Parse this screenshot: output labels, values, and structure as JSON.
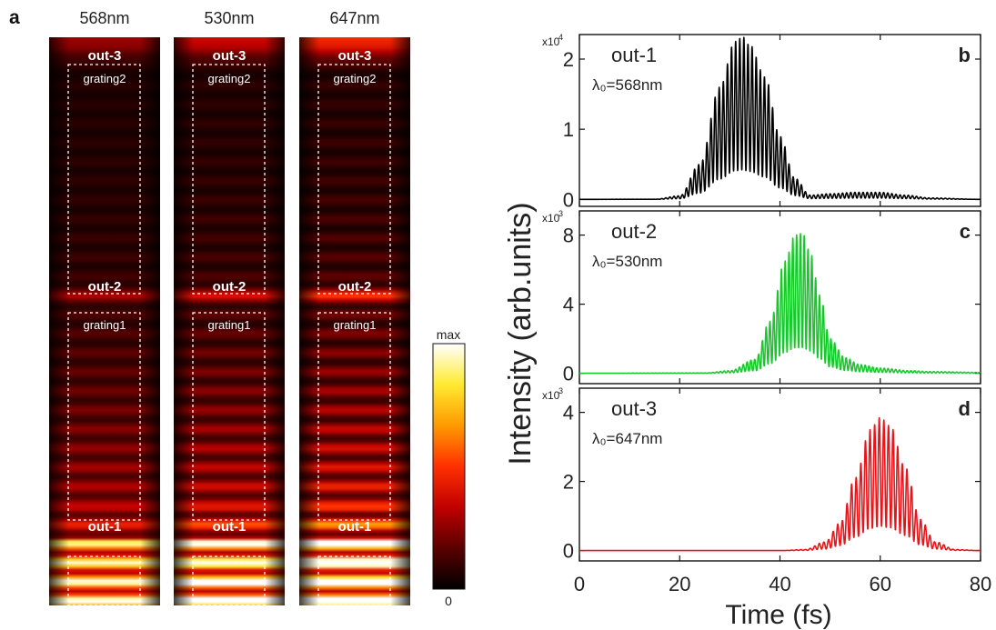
{
  "panel_a": {
    "label": "a",
    "strips": [
      {
        "wavelength": "568nm",
        "strength": 0.55
      },
      {
        "wavelength": "530nm",
        "strength": 0.75
      },
      {
        "wavelength": "647nm",
        "strength": 1.0
      }
    ],
    "labels": {
      "out3": "out-3",
      "out2": "out-2",
      "out1": "out-1",
      "grating2": "grating2",
      "grating1": "grating1"
    },
    "colorbar": {
      "max_label": "max",
      "min_label": "0",
      "colormap": [
        "#000000",
        "#5a0000",
        "#c00000",
        "#ff3000",
        "#ff9a00",
        "#ffea30",
        "#ffffff"
      ]
    }
  },
  "panel_bcd": {
    "ylabel": "Intensity (arb.units)",
    "xlabel": "Time (fs)",
    "x_ticks": [
      "0",
      "20",
      "40",
      "60",
      "80"
    ]
  },
  "chart_data": [
    {
      "type": "line",
      "panel": "b",
      "title": "out-1",
      "subtitle": "λ₀=568nm",
      "multiplier": "x10",
      "exponent": "4",
      "color": "#000000",
      "xlim": [
        0,
        80
      ],
      "ylim": [
        -0.1,
        2.35
      ],
      "y_ticks": [
        0,
        1,
        2
      ],
      "y_tick_labels": [
        "0",
        "1",
        "2"
      ],
      "x": [
        0,
        15,
        20,
        24,
        28,
        31,
        32.5,
        34,
        37,
        40,
        43,
        46,
        50,
        55,
        60,
        65,
        70,
        80
      ],
      "values": [
        0,
        0.002,
        0.05,
        0.5,
        1.6,
        2.25,
        2.32,
        2.2,
        1.75,
        0.9,
        0.3,
        0.06,
        0.08,
        0.1,
        0.1,
        0.06,
        0.02,
        0
      ],
      "carrier_period_fs": 0.82
    },
    {
      "type": "line",
      "panel": "c",
      "title": "out-2",
      "subtitle": "λ₀=530nm",
      "multiplier": "x10",
      "exponent": "3",
      "color": "#16c92a",
      "xlim": [
        0,
        80
      ],
      "ylim": [
        -0.6,
        9.4
      ],
      "y_ticks": [
        0,
        4,
        8
      ],
      "y_tick_labels": [
        "0",
        "4",
        "8"
      ],
      "x": [
        0,
        25,
        30,
        35,
        38,
        41,
        43,
        44.5,
        46,
        48,
        50,
        53,
        56,
        60,
        66,
        70,
        80
      ],
      "values": [
        0,
        0.02,
        0.15,
        0.8,
        3.0,
        6.5,
        8.0,
        8.1,
        7.0,
        4.5,
        2.0,
        0.9,
        0.5,
        0.3,
        0.15,
        0.1,
        0.05
      ],
      "carrier_period_fs": 0.76
    },
    {
      "type": "line",
      "panel": "d",
      "title": "out-3",
      "subtitle": "λ₀=647nm",
      "multiplier": "x10",
      "exponent": "3",
      "color": "#e8141a",
      "xlim": [
        0,
        80
      ],
      "ylim": [
        -0.3,
        4.7
      ],
      "y_ticks": [
        0,
        2,
        4
      ],
      "y_tick_labels": [
        "0",
        "2",
        "4"
      ],
      "x": [
        0,
        40,
        45,
        49,
        52,
        55,
        58,
        60,
        62,
        65,
        68,
        71,
        75,
        80
      ],
      "values": [
        0,
        0,
        0.03,
        0.25,
        0.8,
        2.1,
        3.5,
        3.85,
        3.6,
        2.4,
        0.9,
        0.25,
        0.03,
        0
      ],
      "carrier_period_fs": 0.92
    }
  ]
}
